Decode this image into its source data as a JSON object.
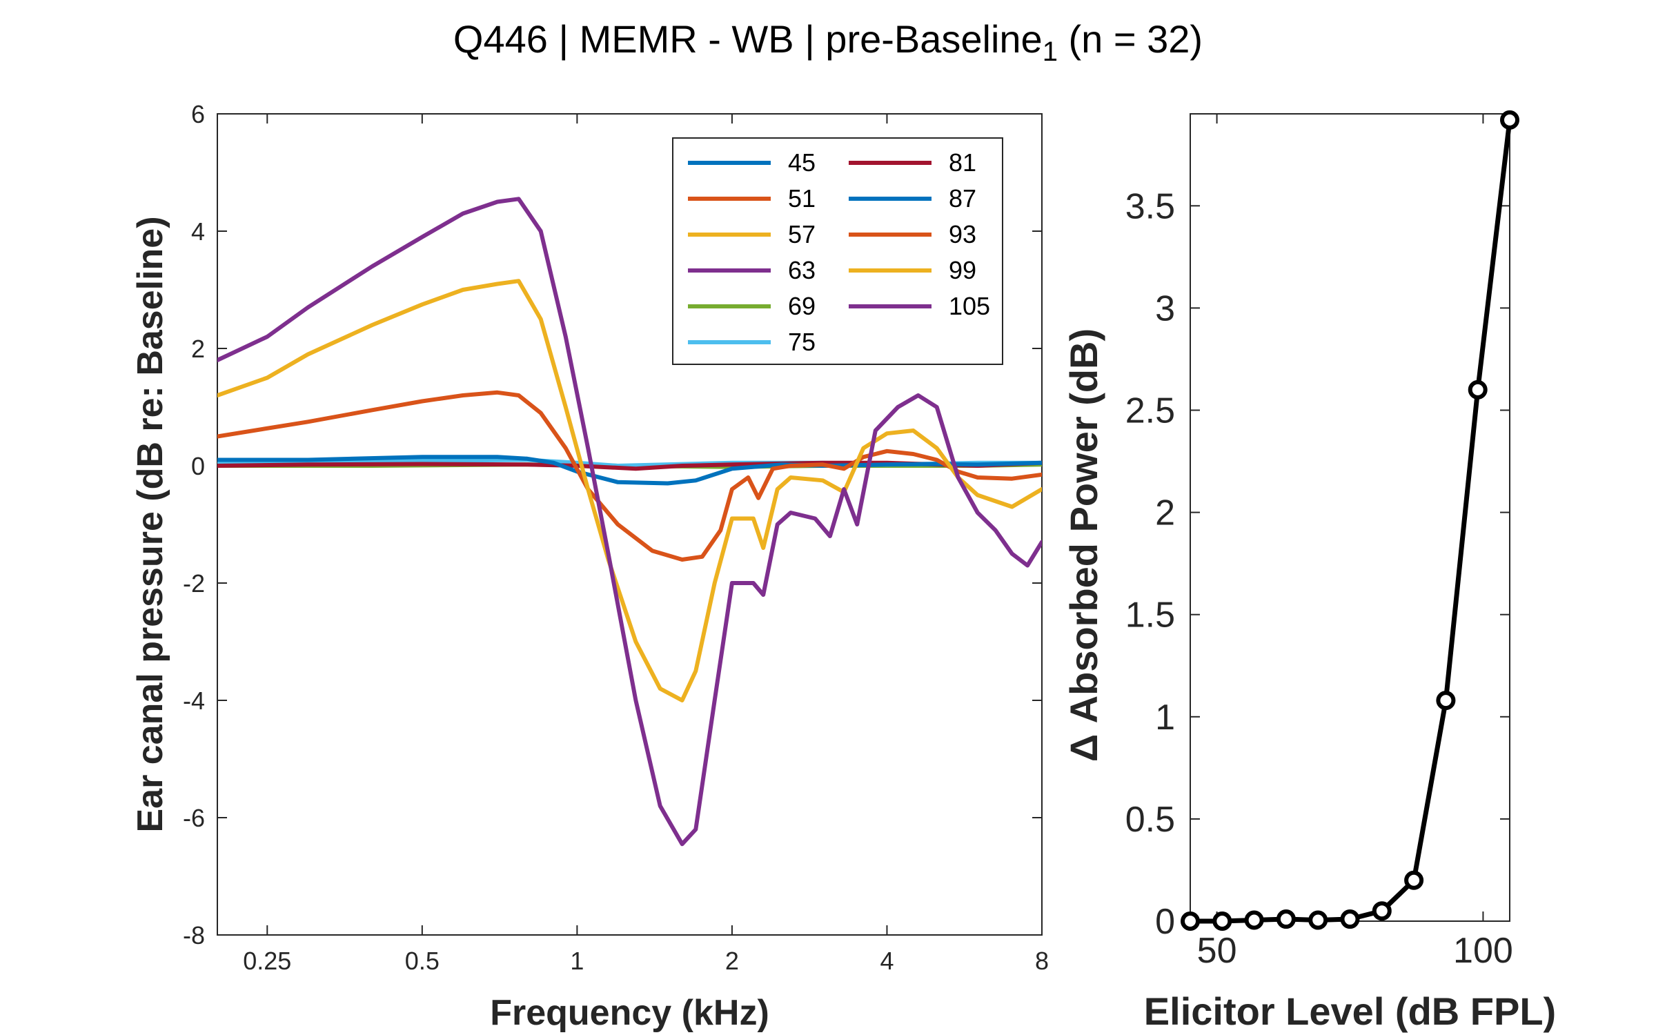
{
  "title": {
    "prefix": "Q446 | MEMR - WB | pre-Baseline",
    "subscript": "1",
    "suffix": " (n = 32)"
  },
  "chart_data": [
    {
      "type": "line",
      "xscale": "log",
      "xlabel": "Frequency (kHz)",
      "ylabel": "Ear canal pressure (dB re: Baseline)",
      "xlim": [
        0.2,
        8
      ],
      "ylim": [
        -8,
        6
      ],
      "xticks": [
        0.25,
        0.5,
        1,
        2,
        4,
        8
      ],
      "xticklabels": [
        "0.25",
        "0.5",
        "1",
        "2",
        "4",
        "8"
      ],
      "yticks": [
        -8,
        -6,
        -4,
        -2,
        0,
        2,
        4,
        6
      ],
      "yticklabels": [
        "-8",
        "-6",
        "-4",
        "-2",
        "0",
        "2",
        "4",
        "6"
      ],
      "grid": false,
      "legend_position": "top-right",
      "series": [
        {
          "name": "45",
          "color": "#0072BD",
          "x": [
            0.2,
            0.3,
            0.5,
            0.7,
            0.8,
            0.9,
            1.0,
            1.2,
            1.5,
            1.7,
            2.0,
            2.5,
            3.0,
            4.0,
            5.0,
            6.0,
            8.0
          ],
          "y": [
            0.1,
            0.1,
            0.15,
            0.15,
            0.12,
            0.05,
            -0.1,
            -0.28,
            -0.3,
            -0.25,
            -0.05,
            0.02,
            0.0,
            0.02,
            0.03,
            0.02,
            0.05
          ]
        },
        {
          "name": "51",
          "color": "#D95319",
          "x": [
            0.2,
            0.3,
            0.4,
            0.5,
            0.6,
            0.7,
            0.77,
            0.85,
            0.95,
            1.05,
            1.2,
            1.4,
            1.6,
            1.75,
            1.9,
            2.0,
            2.15,
            2.25,
            2.4,
            2.6,
            3.0,
            3.3,
            3.6,
            4.0,
            4.5,
            5.0,
            5.5,
            6.0,
            7.0,
            8.0
          ],
          "y": [
            0.5,
            0.75,
            0.95,
            1.1,
            1.2,
            1.25,
            1.2,
            0.9,
            0.3,
            -0.4,
            -1.0,
            -1.45,
            -1.6,
            -1.55,
            -1.1,
            -0.4,
            -0.2,
            -0.55,
            -0.05,
            0.0,
            0.02,
            -0.05,
            0.15,
            0.25,
            0.2,
            0.1,
            -0.1,
            -0.2,
            -0.22,
            -0.15
          ]
        },
        {
          "name": "57",
          "color": "#EDB120",
          "x": [
            0.2,
            0.25,
            0.3,
            0.4,
            0.5,
            0.6,
            0.7,
            0.77,
            0.85,
            0.95,
            1.05,
            1.15,
            1.3,
            1.45,
            1.6,
            1.7,
            1.85,
            2.0,
            2.2,
            2.3,
            2.45,
            2.6,
            3.0,
            3.3,
            3.6,
            4.0,
            4.5,
            5.0,
            5.5,
            6.0,
            7.0,
            8.0
          ],
          "y": [
            1.2,
            1.5,
            1.9,
            2.4,
            2.75,
            3.0,
            3.1,
            3.15,
            2.5,
            1.0,
            -0.4,
            -1.6,
            -3.0,
            -3.8,
            -4.0,
            -3.5,
            -2.0,
            -0.9,
            -0.9,
            -1.4,
            -0.4,
            -0.2,
            -0.25,
            -0.45,
            0.3,
            0.55,
            0.6,
            0.3,
            -0.2,
            -0.5,
            -0.7,
            -0.4
          ]
        },
        {
          "name": "63",
          "color": "#7E2F8E",
          "x": [
            0.2,
            0.25,
            0.3,
            0.4,
            0.5,
            0.6,
            0.7,
            0.77,
            0.85,
            0.95,
            1.05,
            1.15,
            1.3,
            1.45,
            1.6,
            1.7,
            1.85,
            2.0,
            2.2,
            2.3,
            2.45,
            2.6,
            2.9,
            3.1,
            3.3,
            3.5,
            3.8,
            4.2,
            4.6,
            5.0,
            5.5,
            6.0,
            6.5,
            7.0,
            7.5,
            8.0
          ],
          "y": [
            1.8,
            2.2,
            2.7,
            3.4,
            3.9,
            4.3,
            4.5,
            4.55,
            4.0,
            2.2,
            0.3,
            -1.5,
            -4.0,
            -5.8,
            -6.45,
            -6.2,
            -4.0,
            -2.0,
            -2.0,
            -2.2,
            -1.0,
            -0.8,
            -0.9,
            -1.2,
            -0.4,
            -1.0,
            0.6,
            1.0,
            1.2,
            1.0,
            -0.2,
            -0.8,
            -1.1,
            -1.5,
            -1.7,
            -1.3
          ]
        },
        {
          "name": "69",
          "color": "#77AC30",
          "x": [
            0.2,
            0.4,
            0.8,
            1.2,
            2.0,
            3.0,
            4.0,
            6.0,
            8.0
          ],
          "y": [
            0.0,
            0.0,
            0.02,
            0.0,
            -0.02,
            0.0,
            0.0,
            0.0,
            0.02
          ]
        },
        {
          "name": "75",
          "color": "#4DBEEE",
          "x": [
            0.2,
            0.4,
            0.8,
            1.0,
            1.2,
            2.0,
            3.0,
            4.0,
            6.0,
            8.0
          ],
          "y": [
            0.05,
            0.08,
            0.1,
            0.05,
            0.0,
            0.05,
            0.05,
            0.02,
            0.05,
            0.05
          ]
        },
        {
          "name": "81",
          "color": "#A2142F",
          "x": [
            0.2,
            0.3,
            0.5,
            0.8,
            1.0,
            1.3,
            1.6,
            2.0,
            3.0,
            4.0,
            5.0,
            6.0,
            8.0
          ],
          "y": [
            0.0,
            0.02,
            0.03,
            0.02,
            0.0,
            -0.05,
            0.0,
            0.02,
            0.05,
            0.05,
            0.02,
            0.0,
            0.05
          ]
        },
        {
          "name": "87",
          "color": "#0072BD",
          "x": [],
          "y": []
        },
        {
          "name": "93",
          "color": "#D95319",
          "x": [],
          "y": []
        },
        {
          "name": "99",
          "color": "#EDB120",
          "x": [],
          "y": []
        },
        {
          "name": "105",
          "color": "#7E2F8E",
          "x": [],
          "y": []
        }
      ]
    },
    {
      "type": "line",
      "xlabel": "Elicitor Level (dB FPL)",
      "ylabel": "Δ Absorbed Power (dB)",
      "xlim": [
        45,
        105
      ],
      "ylim": [
        0,
        3.95
      ],
      "xticks": [
        50,
        100
      ],
      "xticklabels": [
        "50",
        "100"
      ],
      "yticks": [
        0,
        0.5,
        1,
        1.5,
        2,
        2.5,
        3,
        3.5
      ],
      "yticklabels": [
        "0",
        "0.5",
        "1",
        "1.5",
        "2",
        "2.5",
        "3",
        "3.5"
      ],
      "grid": false,
      "series": [
        {
          "color": "#000000",
          "marker": "circle",
          "x": [
            45,
            51,
            57,
            63,
            69,
            75,
            81,
            87,
            93,
            99,
            105
          ],
          "y": [
            0.0,
            0.0,
            0.005,
            0.01,
            0.005,
            0.01,
            0.05,
            0.2,
            1.08,
            2.6,
            3.92
          ]
        }
      ]
    }
  ]
}
